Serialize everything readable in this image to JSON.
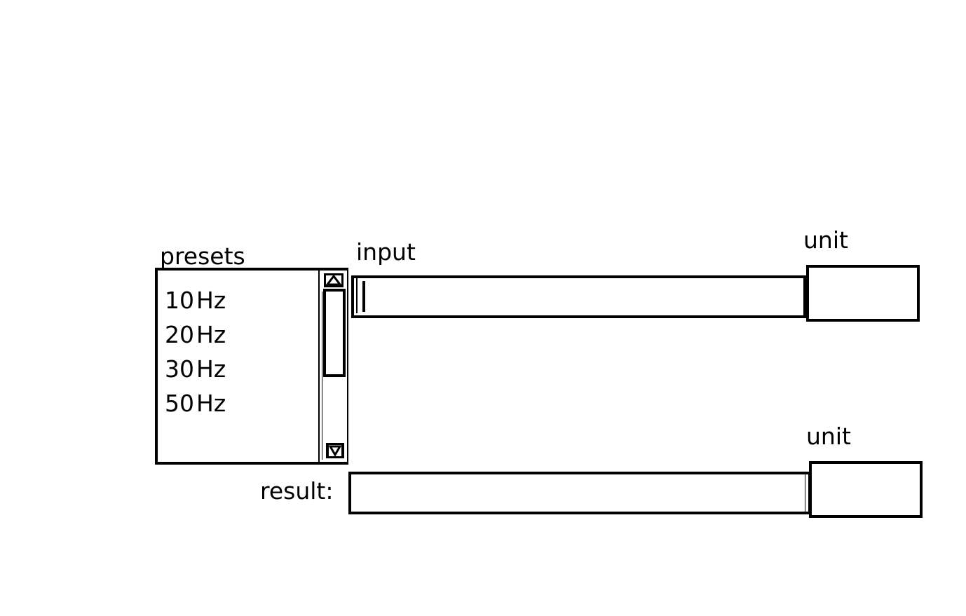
{
  "labels": {
    "presets": "presets",
    "input": "input",
    "unit_top": "unit",
    "unit_bottom": "unit",
    "result": "result:"
  },
  "presets": {
    "items": [
      {
        "value": "10",
        "unit": "Hz"
      },
      {
        "value": "20",
        "unit": "Hz"
      },
      {
        "value": "30",
        "unit": "Hz"
      },
      {
        "value": "50",
        "unit": "Hz"
      }
    ]
  },
  "input": {
    "value": "",
    "unit": ""
  },
  "result": {
    "value": "",
    "unit": ""
  },
  "icons": {
    "scroll_up": "triangle-up-icon",
    "scroll_down": "triangle-down-icon"
  }
}
